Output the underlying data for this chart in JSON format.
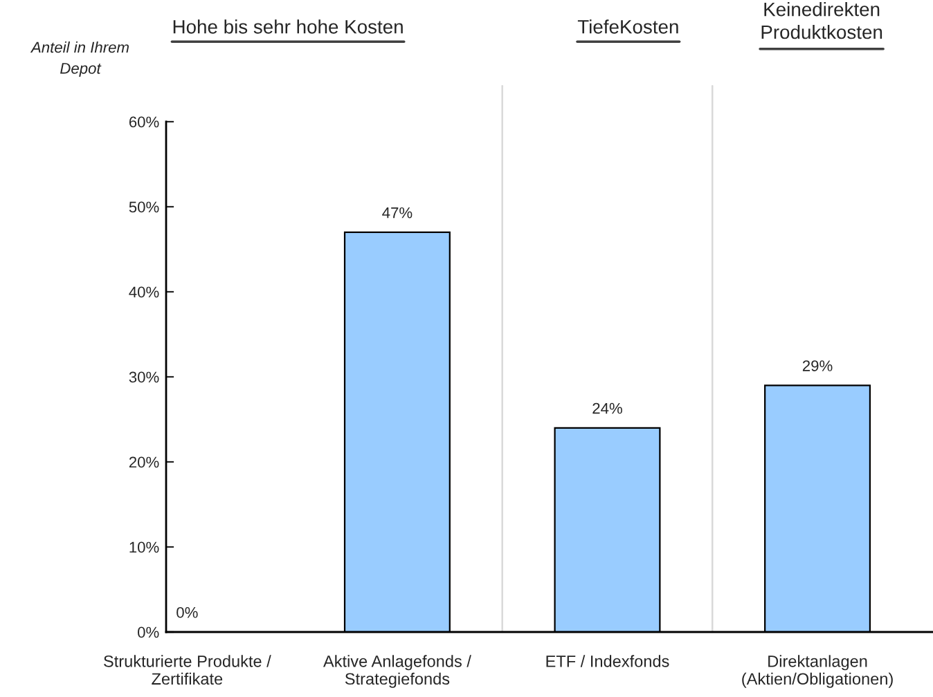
{
  "chart_data": {
    "type": "bar",
    "ylabel": "Anteil in Ihrem\nDepot",
    "categories": [
      "Strukturierte Produkte /\nZertifikate",
      "Aktive Anlagefonds /\nStrategiefonds",
      "ETF / Indexfonds",
      "Direktanlagen\n(Aktien/Obligationen)"
    ],
    "values": [
      0,
      47,
      24,
      29
    ],
    "value_labels": [
      "0%",
      "47%",
      "24%",
      "29%"
    ],
    "color": "#99ccff",
    "ylim": [
      0,
      60
    ],
    "yticks": [
      {
        "value": 0,
        "label": "0%"
      },
      {
        "value": 10,
        "label": "10%"
      },
      {
        "value": 20,
        "label": "20%"
      },
      {
        "value": 30,
        "label": "30%"
      },
      {
        "value": 40,
        "label": "40%"
      },
      {
        "value": 50,
        "label": "50%"
      },
      {
        "value": 60,
        "label": "60%"
      }
    ],
    "annotations": [
      "Hohe bis sehr hohe Kosten",
      "TiefeKosten",
      "Keinedirekten\nProduktkosten"
    ],
    "grid": false
  }
}
